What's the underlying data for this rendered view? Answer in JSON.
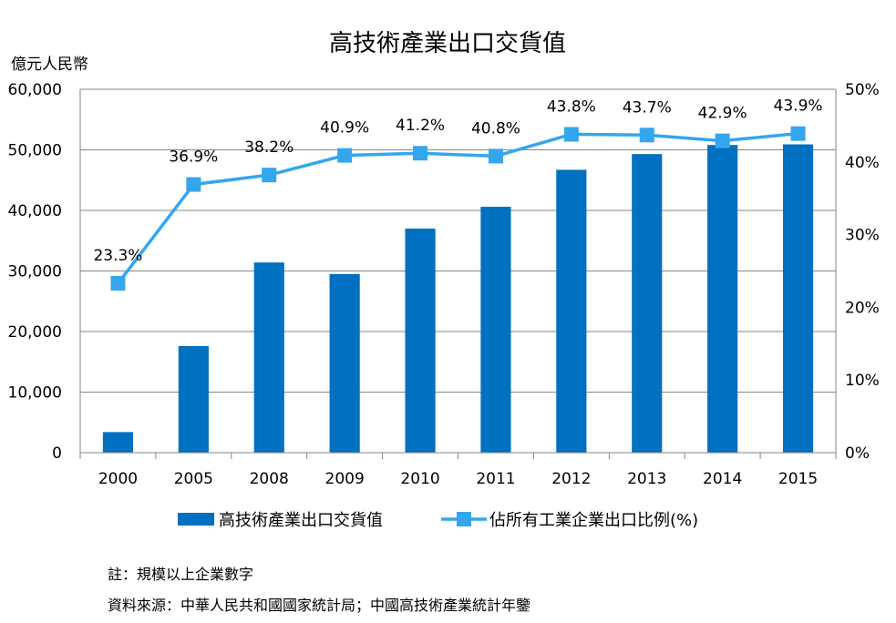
{
  "chart_data": {
    "type": "bar",
    "title": "高技術產業出口交貨值",
    "left_unit": "億元人民幣",
    "categories": [
      "2000",
      "2005",
      "2008",
      "2009",
      "2010",
      "2011",
      "2012",
      "2013",
      "2014",
      "2015"
    ],
    "series": [
      {
        "name": "高技術產業出口交貨值",
        "type": "bar",
        "axis": "left",
        "color": "#0070C0",
        "values": [
          3400,
          17600,
          31400,
          29500,
          37000,
          40600,
          46700,
          49300,
          50800,
          50900
        ]
      },
      {
        "name": "佔所有工業企業出口比例(%)",
        "type": "line",
        "axis": "right",
        "color": "#33A6EE",
        "values": [
          23.3,
          36.9,
          38.2,
          40.9,
          41.2,
          40.8,
          43.8,
          43.7,
          42.9,
          43.9
        ],
        "labels": [
          "23.3%",
          "36.9%",
          "38.2%",
          "40.9%",
          "41.2%",
          "40.8%",
          "43.8%",
          "43.7%",
          "42.9%",
          "43.9%"
        ]
      }
    ],
    "y_left": {
      "min": 0,
      "max": 60000,
      "ticks": [
        "0",
        "10,000",
        "20,000",
        "30,000",
        "40,000",
        "50,000",
        "60,000"
      ]
    },
    "y_right": {
      "min": 0,
      "max": 50,
      "ticks": [
        "0%",
        "10%",
        "20%",
        "30%",
        "40%",
        "50%"
      ]
    },
    "grid": true,
    "legend_position": "bottom"
  },
  "footnotes": {
    "note": "註：規模以上企業數字",
    "source": "資料來源：中華人民共和國國家統計局；中國高技術產業統計年鑒"
  }
}
